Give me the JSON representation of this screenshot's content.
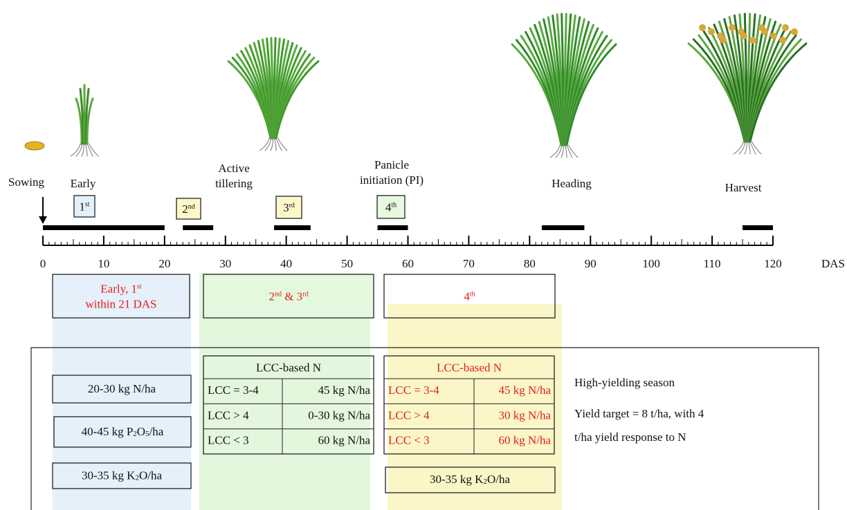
{
  "stages": [
    {
      "lines": [
        "Sowing"
      ]
    },
    {
      "lines": [
        "Early"
      ]
    },
    {
      "lines": [
        "Active",
        "tillering"
      ]
    },
    {
      "lines": [
        "Panicle",
        "initiation (PI)"
      ]
    },
    {
      "lines": [
        "Heading"
      ]
    },
    {
      "lines": [
        "Harvest"
      ]
    }
  ],
  "applications": [
    [
      {
        "text": "1"
      },
      {
        "sup": "st"
      }
    ],
    [
      {
        "text": "2"
      },
      {
        "sup": "nd"
      }
    ],
    [
      {
        "text": "3"
      },
      {
        "sup": "rd"
      }
    ],
    [
      {
        "text": "4"
      },
      {
        "sup": "th"
      }
    ]
  ],
  "timeline": {
    "ticks": [
      0,
      10,
      20,
      30,
      40,
      50,
      60,
      70,
      80,
      90,
      100,
      110,
      120
    ],
    "minor_tick_step": 1,
    "unit": "DAS",
    "bars": [
      [
        0,
        20
      ],
      [
        23,
        28
      ],
      [
        38,
        44
      ],
      [
        55,
        60
      ],
      [
        82,
        89
      ],
      [
        115,
        120
      ]
    ]
  },
  "headers": [
    [
      [
        {
          "text": "Early, 1"
        },
        {
          "sup": "st"
        }
      ],
      [
        {
          "text": "within 21 DAS"
        }
      ]
    ],
    [
      [
        {
          "text": "2"
        },
        {
          "sup": "nd"
        },
        {
          "text": " & 3"
        },
        {
          "sup": "rd"
        }
      ]
    ],
    [
      [
        {
          "text": "4"
        },
        {
          "sup": "th"
        }
      ]
    ]
  ],
  "early_boxes": [
    [
      {
        "text": "20-30 kg N/ha"
      }
    ],
    [
      {
        "text": "40-45 kg P"
      },
      {
        "sub": "2"
      },
      {
        "text": "O"
      },
      {
        "sub": "5"
      },
      {
        "text": "/ha"
      }
    ],
    [
      {
        "text": "30-35 kg K"
      },
      {
        "sub": "2"
      },
      {
        "text": "O/ha"
      }
    ]
  ],
  "tables": [
    {
      "title": "LCC-based N",
      "rows": [
        [
          "LCC = 3-4",
          "45 kg N/ha"
        ],
        [
          "LCC > 4",
          "0-30 kg N/ha"
        ],
        [
          "LCC < 3",
          "60 kg N/ha"
        ]
      ]
    },
    {
      "title": "LCC-based N",
      "rows": [
        [
          "LCC = 3-4",
          "45 kg N/ha"
        ],
        [
          "LCC > 4",
          "30 kg N/ha"
        ],
        [
          "LCC < 3",
          "60 kg N/ha"
        ]
      ]
    }
  ],
  "late_box": [
    {
      "text": "30-35 kg K"
    },
    {
      "sub": "2"
    },
    {
      "text": "O/ha"
    }
  ],
  "notes": [
    "High-yielding season",
    "Yield target = 8 t/ha, with 4",
    "t/ha yield response to N"
  ]
}
